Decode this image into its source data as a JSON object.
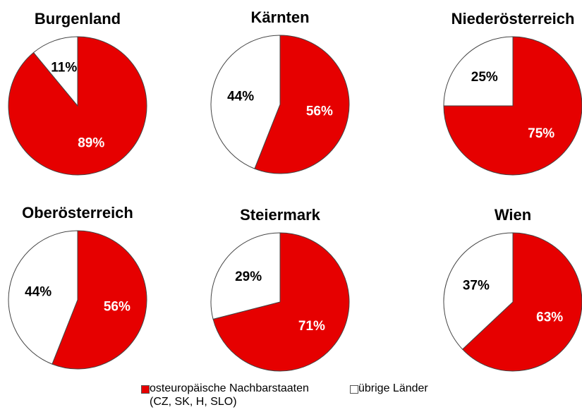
{
  "chart_data": [
    {
      "type": "pie",
      "title": "Burgenland",
      "values": [
        89,
        11
      ],
      "value_labels": [
        "89%",
        "11%"
      ]
    },
    {
      "type": "pie",
      "title": "Kärnten",
      "values": [
        56,
        44
      ],
      "value_labels": [
        "56%",
        "44%"
      ]
    },
    {
      "type": "pie",
      "title": "Niederösterreich",
      "values": [
        75,
        25
      ],
      "value_labels": [
        "75%",
        "25%"
      ]
    },
    {
      "type": "pie",
      "title": "Oberösterreich",
      "values": [
        56,
        44
      ],
      "value_labels": [
        "56%",
        "44%"
      ]
    },
    {
      "type": "pie",
      "title": "Steiermark",
      "values": [
        71,
        29
      ],
      "value_labels": [
        "71%",
        "29%"
      ]
    },
    {
      "type": "pie",
      "title": "Wien",
      "values": [
        63,
        37
      ],
      "value_labels": [
        "63%",
        "37%"
      ]
    }
  ],
  "legend": {
    "items": [
      {
        "name": "osteuropäische Nachbarstaaten\n(CZ, SK, H, SLO)",
        "color": "#e60000"
      },
      {
        "name": "übrige Länder",
        "color": "#ffffff"
      }
    ]
  }
}
